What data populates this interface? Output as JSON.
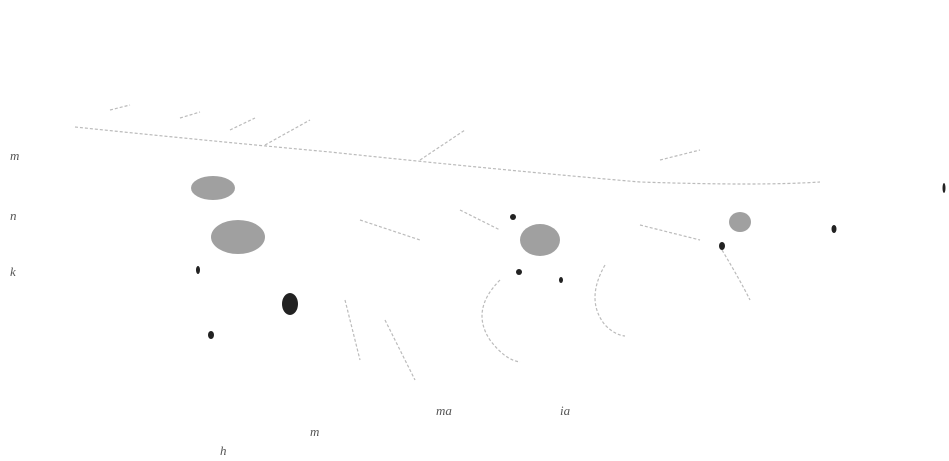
{
  "labels": {
    "left": [
      "m",
      "n",
      "k"
    ],
    "bottom": [
      "h",
      "m",
      "ma",
      "ia"
    ]
  }
}
